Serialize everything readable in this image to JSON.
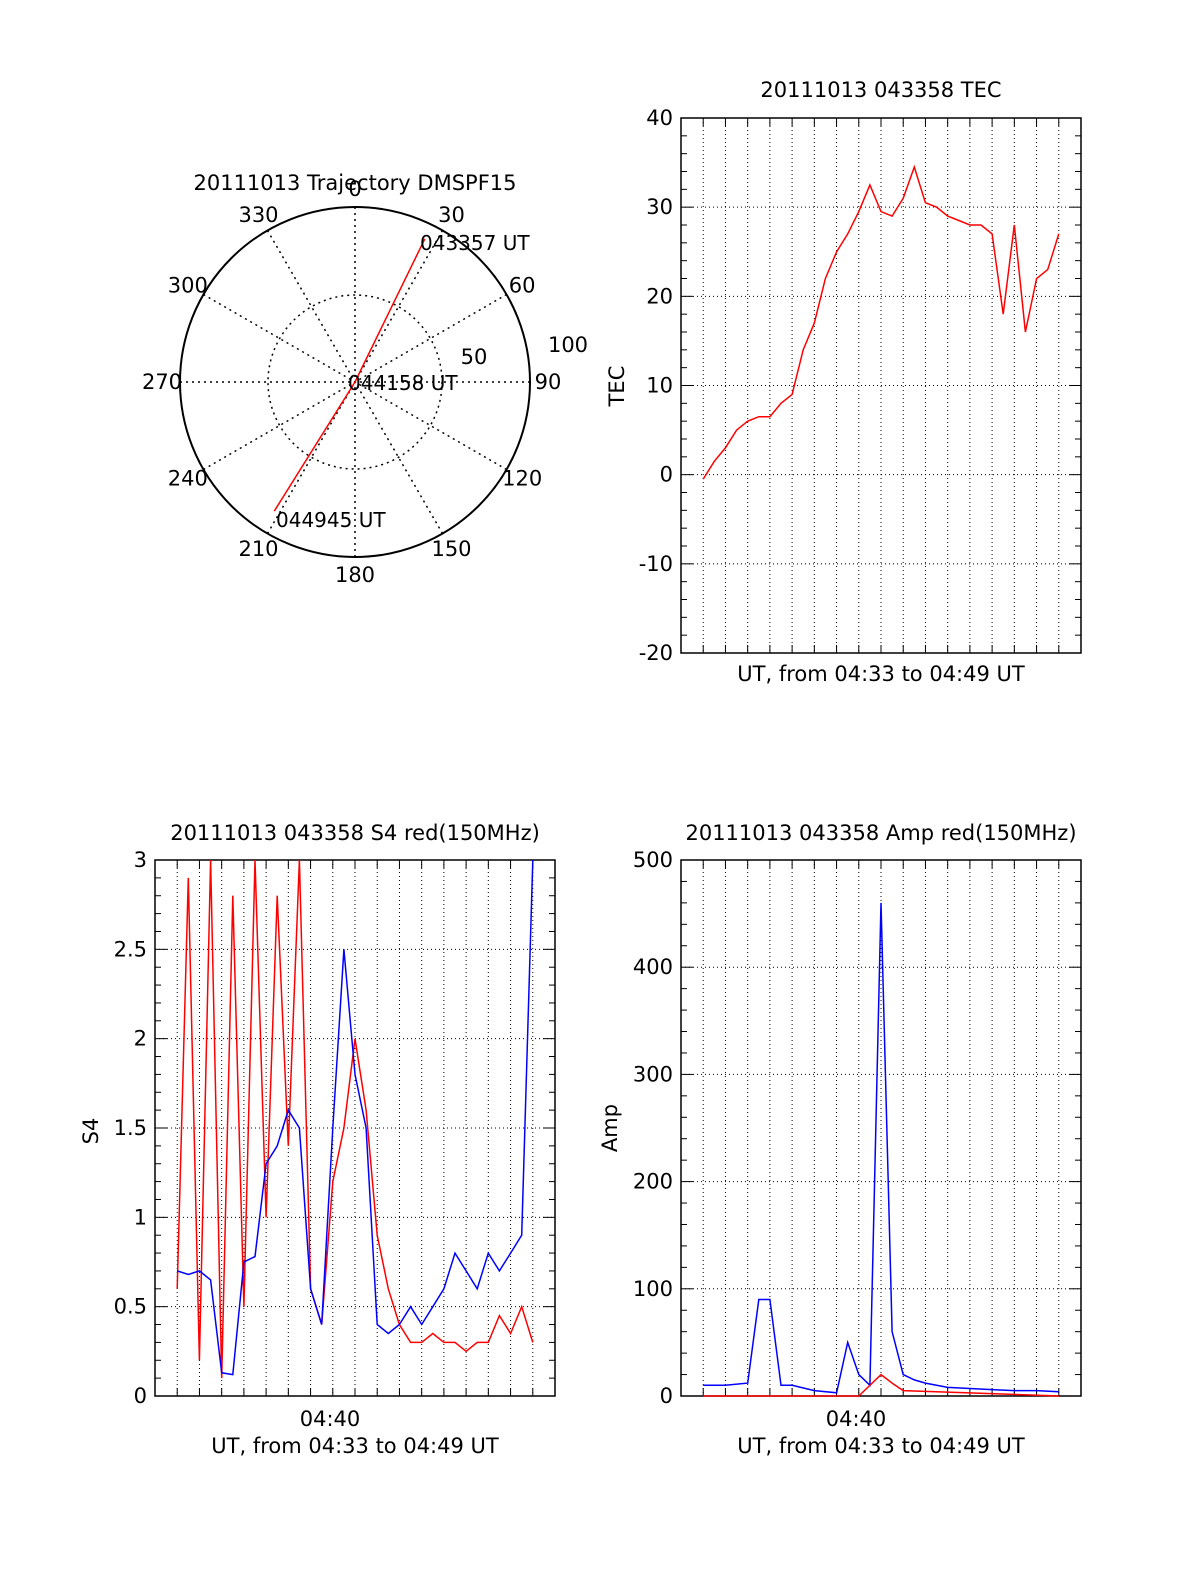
{
  "colors": {
    "red": "#ff0000",
    "blue": "#0000ff",
    "axis": "#000000",
    "grid": "#000000"
  },
  "chart_data": [
    {
      "type": "polar",
      "title": "20111013 Trajectory DMSPF15",
      "angle_labels": [
        "0",
        "30",
        "60",
        "90",
        "120",
        "150",
        "180",
        "210",
        "240",
        "270",
        "300",
        "330"
      ],
      "radial_labels": [
        "50",
        "100"
      ],
      "rlim": [
        0,
        100
      ],
      "grid": true,
      "trajectory": {
        "color": "red",
        "points": [
          {
            "az": 26,
            "r": 91
          },
          {
            "az": 0,
            "r": 0
          },
          {
            "az": 212,
            "r": 87
          }
        ]
      },
      "annotations": [
        "043357 UT",
        "044158 UT",
        "044945 UT"
      ]
    },
    {
      "type": "line",
      "title": "20111013 043358 TEC",
      "xlabel": "UT, from 04:33 to 04:49 UT",
      "ylabel": "TEC",
      "xlim": [
        "04:32",
        "04:50"
      ],
      "ylim": [
        -20,
        40
      ],
      "yticks": [
        "-20",
        "-10",
        "0",
        "10",
        "20",
        "30",
        "40"
      ],
      "grid": true,
      "series": [
        {
          "color": "red",
          "x": [
            "04:33",
            "04:33.5",
            "04:34",
            "04:34.5",
            "04:35",
            "04:35.5",
            "04:36",
            "04:36.5",
            "04:37",
            "04:37.5",
            "04:38",
            "04:38.5",
            "04:39",
            "04:39.5",
            "04:40",
            "04:40.5",
            "04:41",
            "04:41.5",
            "04:42",
            "04:42.5",
            "04:43",
            "04:43.5",
            "04:44",
            "04:44.5",
            "04:45",
            "04:45.5",
            "04:46",
            "04:46.5",
            "04:47",
            "04:47.5",
            "04:48",
            "04:48.5",
            "04:49"
          ],
          "values": [
            -0.5,
            1.5,
            3,
            5,
            6,
            6.5,
            6.5,
            8,
            9,
            14,
            17,
            22,
            25,
            27,
            29.5,
            32.5,
            29.5,
            29,
            31,
            34.5,
            30.5,
            30,
            29,
            28.5,
            28,
            28,
            27,
            18,
            28,
            16,
            22,
            23,
            27
          ]
        }
      ]
    },
    {
      "type": "line",
      "title": "20111013 043358 S4 red(150MHz)",
      "xlabel": "UT, from 04:33 to 04:49 UT",
      "ylabel": "S4",
      "xlim": [
        "04:32",
        "04:50"
      ],
      "ylim": [
        0,
        3
      ],
      "yticks": [
        "0",
        "0.5",
        "1",
        "1.5",
        "2",
        "2.5",
        "3"
      ],
      "xticks": [
        "04:40"
      ],
      "grid": true,
      "series": [
        {
          "color": "red",
          "x": [
            "04:33",
            "04:33.5",
            "04:34",
            "04:34.5",
            "04:35",
            "04:35.5",
            "04:36",
            "04:36.5",
            "04:37",
            "04:37.5",
            "04:38",
            "04:38.5",
            "04:39",
            "04:39.5",
            "04:40",
            "04:40.5",
            "04:41",
            "04:41.5",
            "04:42",
            "04:42.5",
            "04:43",
            "04:43.5",
            "04:44",
            "04:44.5",
            "04:45",
            "04:45.5",
            "04:46",
            "04:46.5",
            "04:47",
            "04:47.5",
            "04:48",
            "04:48.5",
            "04:49"
          ],
          "values": [
            0.6,
            2.9,
            0.2,
            3,
            0.1,
            2.8,
            0.5,
            3,
            1.0,
            2.8,
            1.4,
            3,
            0.6,
            0.4,
            1.2,
            1.5,
            2.0,
            1.6,
            0.9,
            0.6,
            0.4,
            0.3,
            0.3,
            0.35,
            0.3,
            0.3,
            0.25,
            0.3,
            0.3,
            0.45,
            0.35,
            0.5,
            0.3
          ]
        },
        {
          "color": "blue",
          "x": [
            "04:33",
            "04:33.5",
            "04:34",
            "04:34.5",
            "04:35",
            "04:35.5",
            "04:36",
            "04:36.5",
            "04:37",
            "04:37.5",
            "04:38",
            "04:38.5",
            "04:39",
            "04:39.5",
            "04:40",
            "04:40.5",
            "04:41",
            "04:41.5",
            "04:42",
            "04:42.5",
            "04:43",
            "04:43.5",
            "04:44",
            "04:44.5",
            "04:45",
            "04:45.5",
            "04:46",
            "04:46.5",
            "04:47",
            "04:47.5",
            "04:48",
            "04:48.5",
            "04:49"
          ],
          "values": [
            0.7,
            0.68,
            0.7,
            0.65,
            0.13,
            0.12,
            0.75,
            0.78,
            1.3,
            1.4,
            1.6,
            1.5,
            0.6,
            0.4,
            1.5,
            2.5,
            1.8,
            1.5,
            0.4,
            0.35,
            0.4,
            0.5,
            0.4,
            0.5,
            0.6,
            0.8,
            0.7,
            0.6,
            0.8,
            0.7,
            0.8,
            0.9,
            3
          ]
        }
      ]
    },
    {
      "type": "line",
      "title": "20111013 043358 Amp red(150MHz)",
      "xlabel": "UT, from 04:33 to 04:49 UT",
      "ylabel": "Amp",
      "xlim": [
        "04:32",
        "04:50"
      ],
      "ylim": [
        0,
        500
      ],
      "yticks": [
        "0",
        "100",
        "200",
        "300",
        "400",
        "500"
      ],
      "xticks": [
        "04:40"
      ],
      "grid": true,
      "series": [
        {
          "color": "blue",
          "x": [
            "04:33",
            "04:34",
            "04:35",
            "04:35.5",
            "04:36",
            "04:36.5",
            "04:37",
            "04:38",
            "04:39",
            "04:39.5",
            "04:40",
            "04:40.5",
            "04:41",
            "04:41.5",
            "04:42",
            "04:42.5",
            "04:43",
            "04:44",
            "04:45",
            "04:46",
            "04:47",
            "04:48",
            "04:49"
          ],
          "values": [
            10,
            10,
            12,
            90,
            90,
            10,
            10,
            5,
            3,
            50,
            20,
            10,
            460,
            60,
            20,
            15,
            12,
            8,
            7,
            6,
            5,
            5,
            4
          ]
        },
        {
          "color": "red",
          "x": [
            "04:33",
            "04:36",
            "04:40",
            "04:41",
            "04:41.5",
            "04:42",
            "04:49"
          ],
          "values": [
            0,
            0,
            0,
            20,
            12,
            5,
            0
          ]
        }
      ]
    }
  ]
}
